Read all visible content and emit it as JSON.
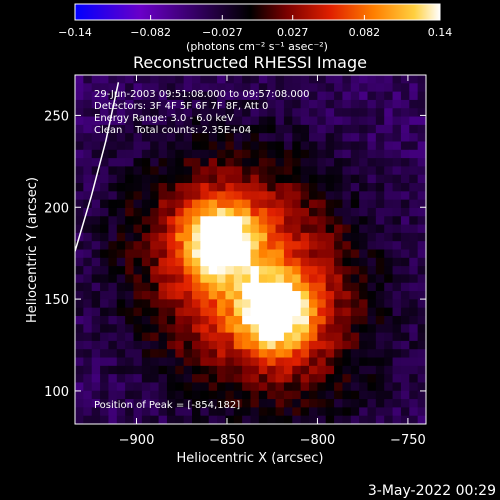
{
  "chart_data": {
    "type": "heatmap",
    "title": "Reconstructed RHESSI Image",
    "xlabel": "Heliocentric X (arcsec)",
    "ylabel": "Heliocentric Y (arcsec)",
    "xlim": [
      -934,
      -740
    ],
    "ylim": [
      82,
      272
    ],
    "x_ticks": [
      -900,
      -850,
      -800,
      -750
    ],
    "x_tick_labels": [
      "−900",
      "−850",
      "−800",
      "−750"
    ],
    "y_ticks": [
      100,
      150,
      200,
      250
    ],
    "y_tick_labels": [
      "100",
      "150",
      "200",
      "250"
    ],
    "colorbar": {
      "range": [
        -0.14,
        0.14
      ],
      "ticks": [
        -0.14,
        -0.082,
        -0.027,
        0.027,
        0.082,
        0.14
      ],
      "tick_labels": [
        "−0.14",
        "−0.082",
        "−0.027",
        "0.027",
        "0.082",
        "0.14"
      ],
      "unit_label": "(photons cm⁻² s⁻¹ asec⁻²)",
      "colors": [
        "#0000ff",
        "#6a00c8",
        "#000000",
        "#7a0000",
        "#e02000",
        "#ff8000",
        "#ffd040",
        "#ffffff"
      ]
    },
    "sources": [
      {
        "x": -854,
        "y": 182,
        "peak": 0.14,
        "width": 14
      },
      {
        "x": -822,
        "y": 141,
        "peak": 0.13,
        "width": 15
      }
    ],
    "annotations": [
      "29-Jun-2003 09:51:08.000 to 09:57:08.000",
      "Detectors: 3F 4F 5F 6F 7F 8F, Att 0",
      "Energy Range: 3.0 - 6.0 keV",
      "Clean    Total counts: 2.35E+04"
    ],
    "peak_label": "Position of Peak = [-854,182]",
    "limb_curve": [
      [
        -934,
        176
      ],
      [
        -925,
        206
      ],
      [
        -917,
        236
      ],
      [
        -910,
        268
      ]
    ],
    "grid": false
  },
  "footer": {
    "date": "3-May-2022 00:29"
  }
}
